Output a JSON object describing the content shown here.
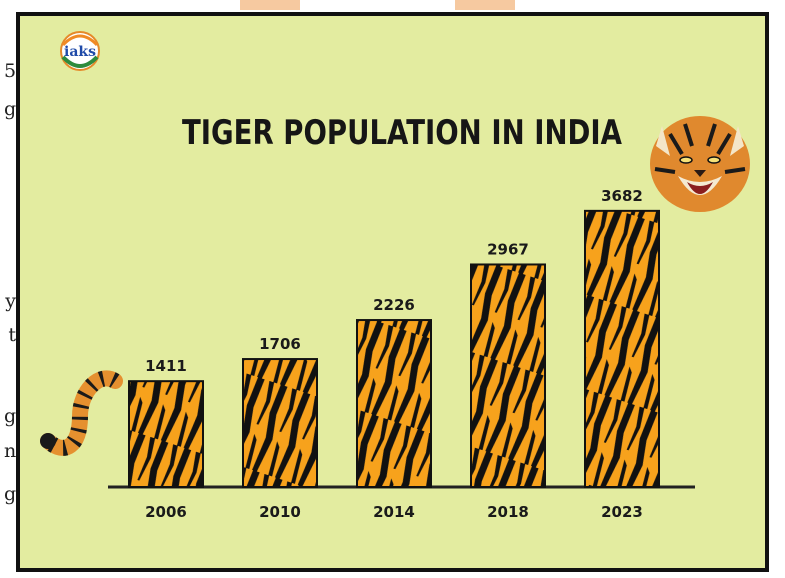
{
  "edge_text": [
    "5",
    "g",
    "y",
    "t",
    "g",
    "n",
    "g"
  ],
  "logo": {
    "text": "iaks"
  },
  "colors": {
    "background": "#e3eca0",
    "bar_fill": "#f7a21c",
    "stripe": "#111111",
    "frame": "#111111",
    "axis": "#222222"
  },
  "chart_data": {
    "type": "bar",
    "title": "TIGER POPULATION IN INDIA",
    "categories": [
      "2006",
      "2010",
      "2014",
      "2018",
      "2023"
    ],
    "values": [
      1411,
      1706,
      2226,
      2967,
      3682
    ],
    "xlabel": "",
    "ylabel": "",
    "ylim": [
      0,
      4200
    ],
    "grid": false,
    "legend": "none",
    "data_labels": true
  }
}
